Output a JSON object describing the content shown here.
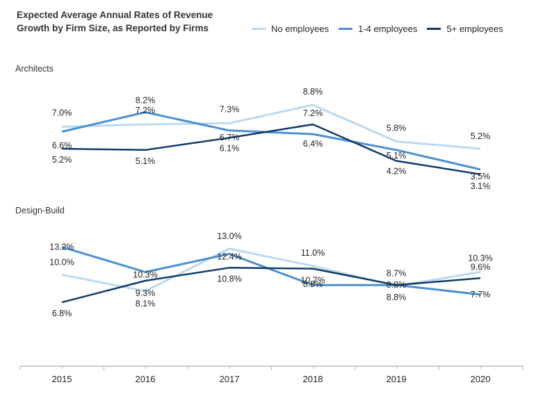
{
  "chart_data": {
    "type": "line",
    "title_line1": "Expected Average Annual Rates of Revenue",
    "title_line2": "Growth by Firm Size, as Reported by Firms",
    "categories": [
      "2015",
      "2016",
      "2017",
      "2018",
      "2019",
      "2020"
    ],
    "legend": [
      "No employees",
      "1-4 employees",
      "5+ employees"
    ],
    "colors": {
      "no_employees": "#bdd8ee",
      "one_four": "#4a90d0",
      "five_plus": "#0f3a66",
      "axis": "#bbbbbb"
    },
    "panels": [
      {
        "name": "Architects",
        "ylim": [
          2.0,
          10.0
        ],
        "series": [
          {
            "name": "No employees",
            "values": [
              7.0,
              7.2,
              7.3,
              8.8,
              5.8,
              5.2
            ],
            "labels": [
              "7.0%",
              "7.2%",
              "7.3%",
              "8.8%",
              "5.8%",
              "5.2%"
            ]
          },
          {
            "name": "1-4 employees",
            "values": [
              6.6,
              8.2,
              6.7,
              6.4,
              5.1,
              3.5
            ],
            "labels": [
              "6.6%",
              "8.2%",
              "6.7%",
              "6.4%",
              "5.1%",
              "3.5%"
            ]
          },
          {
            "name": "5+ employees",
            "values": [
              5.2,
              5.1,
              6.1,
              7.2,
              4.2,
              3.1
            ],
            "labels": [
              "5.2%",
              "5.1%",
              "6.1%",
              "7.2%",
              "4.2%",
              "3.1%"
            ]
          }
        ]
      },
      {
        "name": "Design-Build",
        "ylim": [
          4.0,
          15.0
        ],
        "series": [
          {
            "name": "No employees",
            "values": [
              10.0,
              8.1,
              13.0,
              11.0,
              8.7,
              10.3
            ],
            "labels": [
              "10.0%",
              "8.1%",
              "13.0%",
              "11.0%",
              "8.7%",
              "10.3%"
            ]
          },
          {
            "name": "1-4 employees",
            "values": [
              13.2,
              10.3,
              12.4,
              8.8,
              8.8,
              7.7
            ],
            "labels": [
              "13.2%",
              "10.3%",
              "12.4%",
              "8.8%",
              "8.8%",
              "7.7%"
            ]
          },
          {
            "name": "5+ employees",
            "values": [
              6.8,
              9.3,
              10.8,
              10.7,
              8.8,
              9.6
            ],
            "labels": [
              "6.8%",
              "9.3%",
              "10.8%",
              "10.7%",
              "8.8%",
              "9.6%"
            ]
          }
        ]
      }
    ]
  }
}
